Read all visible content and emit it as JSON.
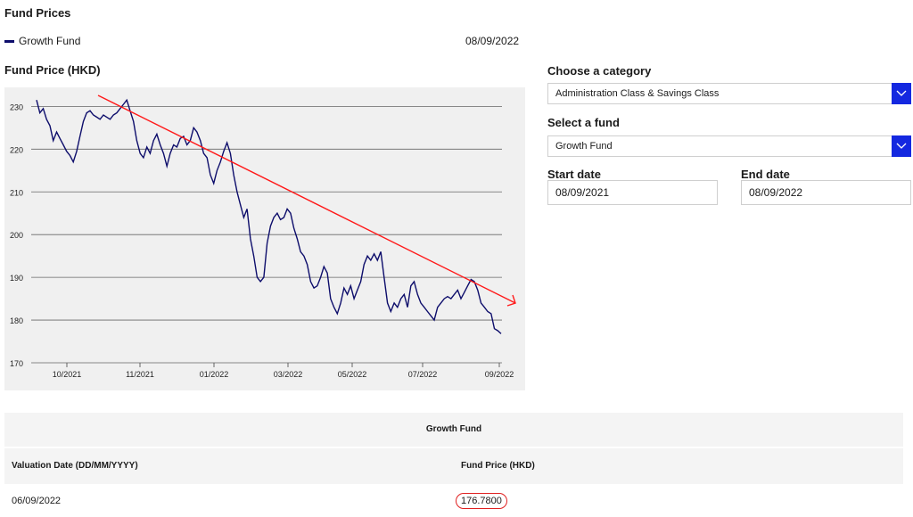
{
  "header": {
    "title": "Fund Prices",
    "legend_label": "Growth Fund",
    "date": "08/09/2022"
  },
  "chart_heading": "Fund Price (HKD)",
  "filters": {
    "category_label": "Choose a category",
    "category_value": "Administration Class & Savings Class",
    "fund_label": "Select a fund",
    "fund_value": "Growth Fund",
    "start_label": "Start date",
    "start_value": "08/09/2021",
    "end_label": "End date",
    "end_value": "08/09/2022"
  },
  "table": {
    "caption": "Growth Fund",
    "col_date": "Valuation Date (DD/MM/YYYY)",
    "col_price": "Fund Price (HKD)",
    "rows": [
      {
        "date": "06/09/2022",
        "price": "176.7800"
      }
    ]
  },
  "chart_data": {
    "type": "line",
    "ylim": [
      170,
      233
    ],
    "yticks": [
      170,
      180,
      190,
      200,
      210,
      220,
      230
    ],
    "xticks": [
      "10/2021",
      "11/2021",
      "01/2022",
      "03/2022",
      "05/2022",
      "07/2022",
      "09/2022"
    ],
    "series": [
      {
        "name": "Growth Fund",
        "color": "#0d0d6b",
        "values": [
          231.5,
          228.5,
          229.5,
          227.0,
          225.5,
          222.0,
          224.0,
          222.5,
          221.0,
          219.5,
          218.5,
          217.0,
          219.5,
          223.0,
          226.5,
          228.5,
          229.0,
          228.0,
          227.5,
          227.0,
          228.0,
          227.5,
          227.0,
          228.0,
          228.5,
          229.5,
          230.5,
          231.5,
          229.0,
          226.5,
          222.0,
          219.0,
          218.0,
          220.5,
          219.0,
          222.0,
          223.5,
          221.0,
          219.0,
          216.0,
          219.0,
          221.0,
          220.5,
          222.5,
          223.0,
          221.0,
          222.0,
          225.0,
          224.0,
          222.0,
          219.0,
          218.0,
          214.0,
          212.0,
          215.0,
          217.0,
          219.5,
          221.5,
          219.0,
          214.0,
          210.0,
          207.0,
          204.0,
          206.0,
          199.0,
          195.0,
          190.0,
          189.0,
          190.0,
          198.0,
          202.0,
          204.0,
          205.0,
          203.5,
          204.0,
          206.0,
          205.0,
          201.5,
          199.0,
          196.0,
          195.0,
          193.0,
          189.0,
          187.5,
          188.0,
          190.0,
          192.5,
          191.0,
          185.0,
          183.0,
          181.5,
          184.0,
          187.5,
          186.0,
          188.0,
          185.0,
          187.0,
          189.0,
          193.0,
          195.0,
          194.0,
          195.5,
          194.0,
          196.0,
          190.0,
          184.0,
          182.0,
          184.0,
          183.0,
          185.0,
          186.0,
          183.0,
          188.0,
          189.0,
          186.0,
          184.0,
          183.0,
          182.0,
          181.0,
          180.0,
          183.0,
          184.0,
          185.0,
          185.5,
          185.0,
          186.0,
          187.0,
          185.0,
          186.5,
          188.0,
          189.5,
          189.0,
          187.0,
          184.0,
          183.0,
          182.0,
          181.5,
          178.0,
          177.5,
          176.8
        ],
        "x_start": "08/09/2021",
        "x_end": "06/09/2022"
      },
      {
        "name": "trend-arrow",
        "color": "#ff1a1a"
      }
    ]
  }
}
